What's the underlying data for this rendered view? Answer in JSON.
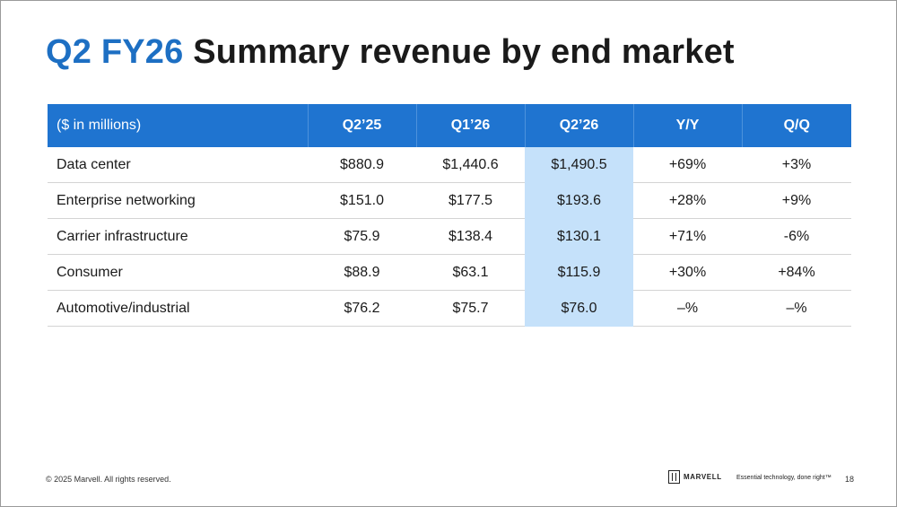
{
  "title": {
    "accent": "Q2 FY26",
    "main": "Summary revenue by end market"
  },
  "table": {
    "headers": [
      "($ in millions)",
      "Q2’25",
      "Q1’26",
      "Q2’26",
      "Y/Y",
      "Q/Q"
    ],
    "highlight_column": "Q2’26",
    "rows": [
      [
        "Data center",
        "$880.9",
        "$1,440.6",
        "$1,490.5",
        "+69%",
        "+3%"
      ],
      [
        "Enterprise networking",
        "$151.0",
        "$177.5",
        "$193.6",
        "+28%",
        "+9%"
      ],
      [
        "Carrier infrastructure",
        "$75.9",
        "$138.4",
        "$130.1",
        "+71%",
        "-6%"
      ],
      [
        "Consumer",
        "$88.9",
        "$63.1",
        "$115.9",
        "+30%",
        "+84%"
      ],
      [
        "Automotive/industrial",
        "$76.2",
        "$75.7",
        "$76.0",
        "–%",
        "–%"
      ]
    ]
  },
  "footer": {
    "copyright": "© 2025 Marvell. All rights reserved.",
    "logo_text": "MARVELL",
    "tagline": "Essential technology, done right™",
    "page_number": "18"
  },
  "colors": {
    "accent_blue": "#1d6fc3",
    "header_blue": "#1f74d0",
    "highlight_blue": "#c5e1fa"
  }
}
